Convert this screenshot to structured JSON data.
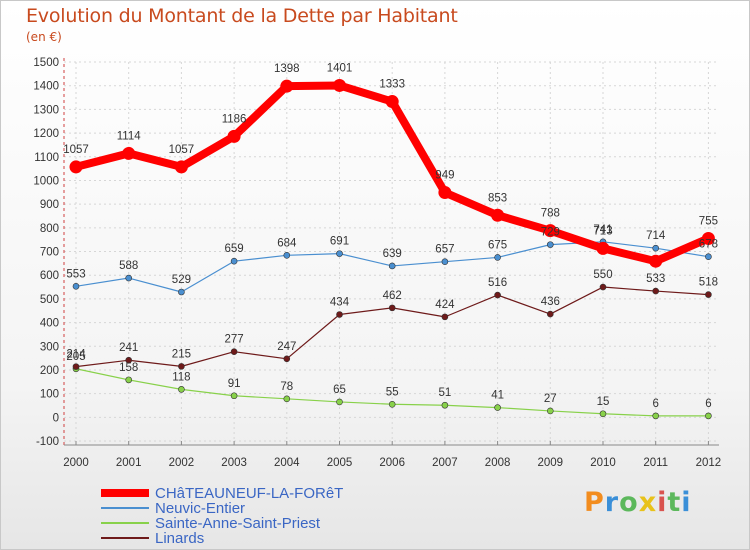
{
  "header": {
    "title": "Evolution du Montant de la Dette par Habitant",
    "subtitle": "(en €)"
  },
  "brand": {
    "letters": [
      {
        "ch": "P",
        "color": "#f28c1e"
      },
      {
        "ch": "r",
        "color": "#3a8fd8"
      },
      {
        "ch": "o",
        "color": "#5cb85c"
      },
      {
        "ch": "x",
        "color": "#e8c21a"
      },
      {
        "ch": "i",
        "color": "#d9534f"
      },
      {
        "ch": "t",
        "color": "#5cb85c"
      },
      {
        "ch": "i",
        "color": "#3a8fd8"
      }
    ]
  },
  "chart_data": {
    "type": "line",
    "title": "Evolution du Montant de la Dette par Habitant",
    "subtitle": "(en €)",
    "xlabel": "",
    "ylabel": "",
    "ylim": [
      -100,
      1500
    ],
    "yticks": [
      -100,
      0,
      100,
      200,
      300,
      400,
      500,
      600,
      700,
      800,
      900,
      1000,
      1100,
      1200,
      1300,
      1400,
      1500
    ],
    "ytick_labels": [
      "-100",
      "0",
      "100",
      "200",
      "300",
      "400",
      "500",
      "600",
      "700",
      "800",
      "900",
      "1000",
      "1100",
      "1200",
      "1300",
      "1400",
      "1500"
    ],
    "x": [
      "2000",
      "2001",
      "2002",
      "2003",
      "2004",
      "2005",
      "2006",
      "2007",
      "2008",
      "2009",
      "2010",
      "2011",
      "2012"
    ],
    "grid": true,
    "legend_position": "bottom-left",
    "series": [
      {
        "name": "CHâTEAUNEUF-LA-FORêT",
        "color": "#ff0000",
        "values": [
          1057,
          1114,
          1057,
          1186,
          1398,
          1401,
          1333,
          949,
          853,
          788,
          713,
          659,
          755
        ],
        "labels": [
          "1057",
          "1114",
          "1057",
          "1186",
          "1398",
          "1401",
          "1333",
          "949",
          "853",
          "788",
          "713",
          "",
          "755"
        ]
      },
      {
        "name": "Neuvic-Entier",
        "color": "#4a8fd0",
        "values": [
          553,
          588,
          529,
          659,
          684,
          691,
          639,
          657,
          675,
          729,
          741,
          714,
          678
        ],
        "labels": [
          "553",
          "588",
          "529",
          "659",
          "684",
          "691",
          "639",
          "657",
          "675",
          "729",
          "741",
          "714",
          "678"
        ]
      },
      {
        "name": "Sainte-Anne-Saint-Priest",
        "color": "#88d14a",
        "values": [
          205,
          158,
          118,
          91,
          78,
          65,
          55,
          51,
          41,
          27,
          15,
          6,
          6
        ],
        "labels": [
          "205",
          "158",
          "118",
          "91",
          "78",
          "65",
          "55",
          "51",
          "41",
          "27",
          "15",
          "6",
          "6"
        ]
      },
      {
        "name": "Linards",
        "color": "#6e1a1a",
        "values": [
          214,
          241,
          215,
          277,
          247,
          434,
          462,
          424,
          516,
          436,
          550,
          533,
          518
        ],
        "labels": [
          "214",
          "241",
          "215",
          "277",
          "247",
          "434",
          "462",
          "424",
          "516",
          "436",
          "550",
          "533",
          "518"
        ]
      }
    ]
  }
}
